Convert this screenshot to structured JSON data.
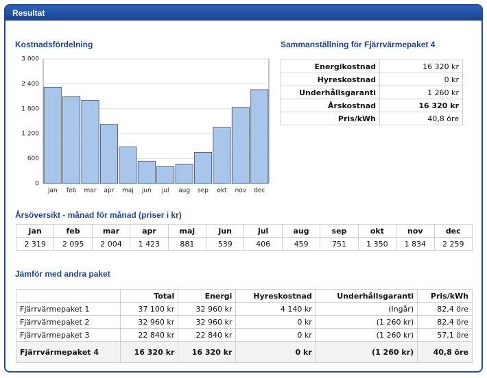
{
  "header": {
    "title": "Resultat"
  },
  "chart_data": {
    "type": "bar",
    "title": "Kostnadsfördelning",
    "categories": [
      "jan",
      "feb",
      "mar",
      "apr",
      "maj",
      "jun",
      "jul",
      "aug",
      "sep",
      "okt",
      "nov",
      "dec"
    ],
    "values": [
      2319,
      2095,
      2004,
      1423,
      881,
      539,
      406,
      459,
      751,
      1350,
      1834,
      2259
    ],
    "color": "#a9c6ea",
    "ylim": [
      0,
      3000
    ],
    "yticks": [
      0,
      600,
      {
        "value": 1200,
        "label": "1 200"
      },
      {
        "value": 1800,
        "label": "1 800"
      },
      {
        "value": 2400,
        "label": "2 400"
      },
      {
        "value": 3000,
        "label": "3 000"
      }
    ],
    "grid": true
  },
  "summary": {
    "title": "Sammanställning för Fjärrvärmepaket 4",
    "rows": [
      [
        "Energikostnad",
        "16 320 kr"
      ],
      [
        "Hyreskostnad",
        "0 kr"
      ],
      [
        "Underhållsgaranti",
        "1 260 kr"
      ],
      [
        "Årskostnad",
        "16 320 kr"
      ],
      [
        "Pris/kWh",
        "40,8 öre"
      ]
    ]
  },
  "monthly": {
    "title": "Årsöversikt - månad för månad (priser i kr)",
    "headers": [
      "jan",
      "feb",
      "mar",
      "apr",
      "maj",
      "jun",
      "jul",
      "aug",
      "sep",
      "okt",
      "nov",
      "dec"
    ],
    "values": [
      "2 319",
      "2 095",
      "2 004",
      "1 423",
      "881",
      "539",
      "406",
      "459",
      "751",
      "1 350",
      "1 834",
      "2 259"
    ]
  },
  "compare": {
    "title": "Jämför med andra paket",
    "headers": [
      "Total",
      "Energi",
      "Hyreskostnad",
      "Underhållsgaranti",
      "Pris/kWh"
    ],
    "rows": [
      [
        "Fjärrvärmepaket 1",
        "37 100 kr",
        "32 960 kr",
        "4 140 kr",
        "(Ingår)",
        "82,4 öre"
      ],
      [
        "Fjärrvärmepaket 2",
        "32 960 kr",
        "32 960 kr",
        "0 kr",
        "(1 260 kr)",
        "82,4 öre"
      ],
      [
        "Fjärrvärmepaket 3",
        "22 840 kr",
        "22 840 kr",
        "0 kr",
        "(1 260 kr)",
        "57,1 öre"
      ],
      [
        "Fjärrvärmepaket 4",
        "16 320 kr",
        "16 320 kr",
        "0 kr",
        "(1 260 kr)",
        "40,8 öre"
      ]
    ]
  }
}
